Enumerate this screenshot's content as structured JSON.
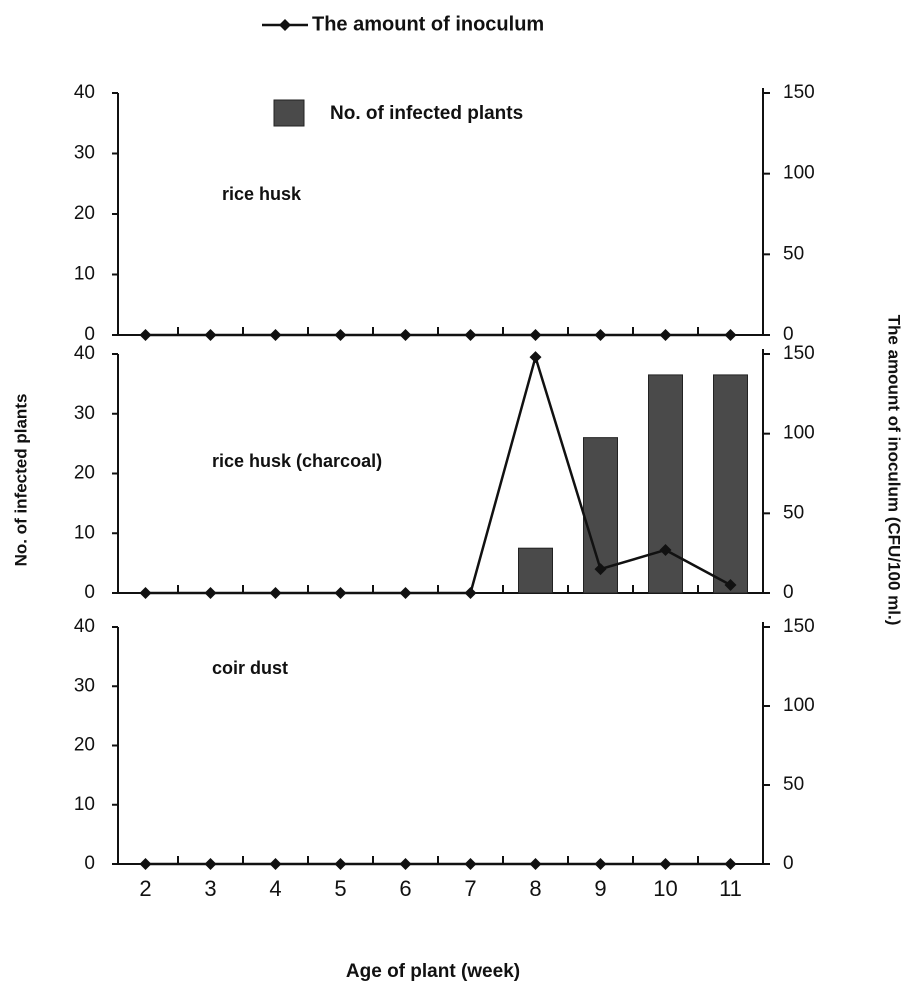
{
  "chart_data": {
    "type": "bar",
    "x_label": "Age of plant (week)",
    "y_label": "No. of infected plants",
    "y2_label": "The amount of inoculum (CFU/100 ml.)",
    "categories": [
      2,
      3,
      4,
      5,
      6,
      7,
      8,
      9,
      10,
      11
    ],
    "ylim": [
      0,
      40
    ],
    "yticks": [
      0,
      10,
      20,
      30,
      40
    ],
    "y2lim": [
      0,
      150
    ],
    "y2ticks": [
      0,
      50,
      100,
      150
    ],
    "series": [
      {
        "name": "No. of infected plants",
        "color": "#4a4a4a"
      },
      {
        "name": "The amount of inoculum",
        "color": "#111111",
        "axis": "y2"
      }
    ],
    "panels": [
      {
        "label": "rice husk",
        "series": [
          {
            "values": [
              0,
              0,
              0,
              0,
              0,
              0,
              0,
              0,
              0,
              0
            ]
          },
          {
            "values": [
              0,
              0,
              0,
              0,
              0,
              0,
              0,
              0,
              0,
              0
            ]
          }
        ]
      },
      {
        "label": "rice husk (charcoal)",
        "series": [
          {
            "values": [
              0,
              0,
              0,
              0,
              0,
              0,
              7.5,
              26,
              36.5,
              36.5
            ]
          },
          {
            "values": [
              0,
              0,
              0,
              0,
              0,
              0,
              148,
              15,
              27,
              5
            ]
          }
        ]
      },
      {
        "label": "coir dust",
        "series": [
          {
            "values": [
              0,
              0,
              0,
              0,
              0,
              0,
              0,
              0,
              0,
              0
            ]
          },
          {
            "values": [
              0,
              0,
              0,
              0,
              0,
              0,
              0,
              0,
              0,
              0
            ]
          }
        ]
      }
    ]
  }
}
